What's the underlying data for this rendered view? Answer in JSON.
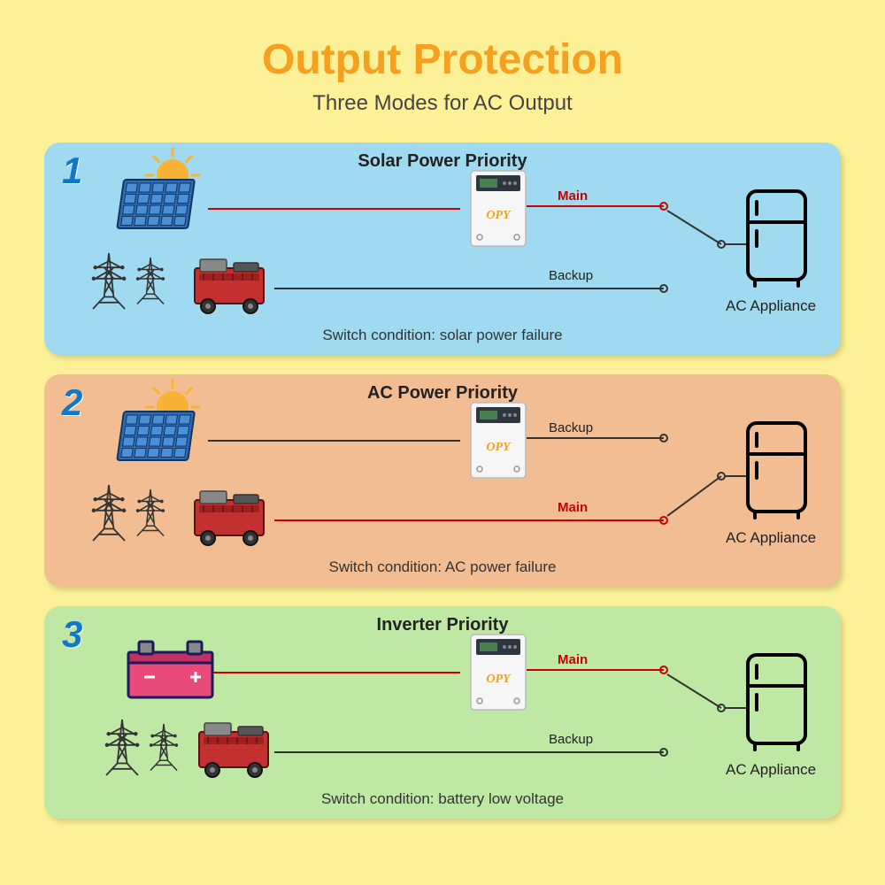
{
  "title": "Output Protection",
  "subtitle": "Three Modes for AC Output",
  "colors": {
    "page_bg": "#fcf197",
    "title": "#f5a020",
    "subtitle": "#444444",
    "panel_blue": "#a0daf0",
    "panel_orange": "#f2bd92",
    "panel_green": "#c0e8a5",
    "number": "#1277c9",
    "main_line": "#cc0000",
    "backup_line": "#333333",
    "text": "#222222"
  },
  "labels": {
    "main": "Main",
    "backup": "Backup",
    "appliance": "AC Appliance"
  },
  "panels": [
    {
      "num": "1",
      "color": "blue",
      "title": "Solar Power Priority",
      "condition": "Switch condition: solar power failure",
      "top_source": "solar",
      "bottom_source": "grid_gen",
      "main_on": "top"
    },
    {
      "num": "2",
      "color": "orange",
      "title": "AC Power Priority",
      "condition": "Switch condition: AC power failure",
      "top_source": "solar",
      "bottom_source": "grid_gen",
      "main_on": "bottom"
    },
    {
      "num": "3",
      "color": "green",
      "title": "Inverter Priority",
      "condition": "Switch condition: battery low voltage",
      "top_source": "battery",
      "bottom_source": "grid_gen",
      "main_on": "top"
    }
  ]
}
